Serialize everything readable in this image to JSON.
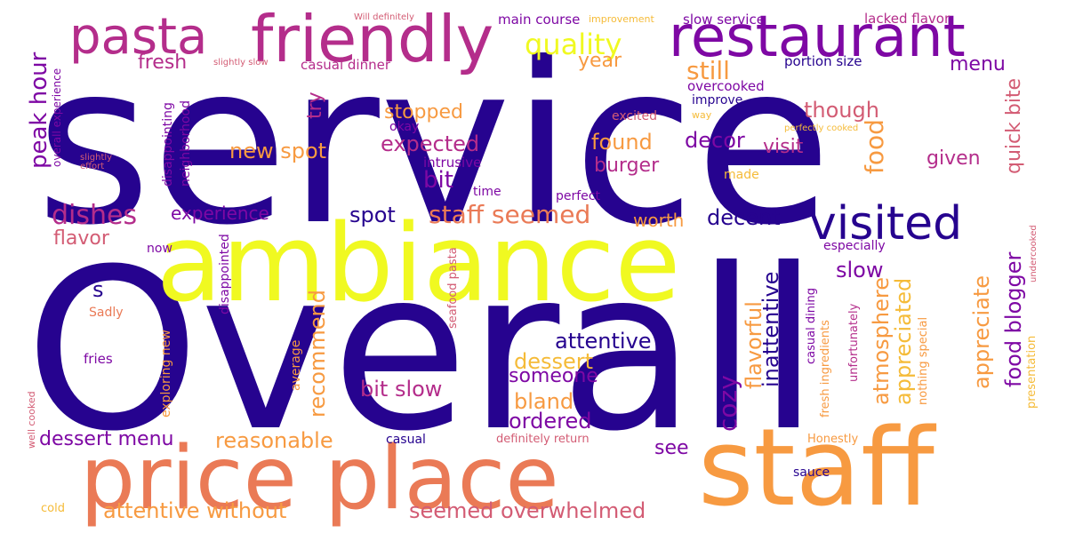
{
  "palette": {
    "indigo": "#26038f",
    "purple": "#7e08a4",
    "magenta": "#b42d8b",
    "pink": "#d35c74",
    "coral": "#ea7a56",
    "orange": "#f79a41",
    "gold": "#f5bb38",
    "yellow": "#f0f921"
  },
  "words": [
    {
      "text": "service",
      "color": "#26038f"
    },
    {
      "text": "Overall",
      "color": "#26038f"
    },
    {
      "text": "ambiance",
      "color": "#f0f921"
    },
    {
      "text": "staff",
      "color": "#f79a41"
    },
    {
      "text": "price place",
      "color": "#ea7a56"
    },
    {
      "text": "friendly",
      "color": "#b42d8b"
    },
    {
      "text": "restaurant",
      "color": "#7e08a4"
    },
    {
      "text": "pasta",
      "color": "#b42d8b"
    },
    {
      "text": "visited",
      "color": "#26038f"
    },
    {
      "text": "quality",
      "color": "#f0f921"
    },
    {
      "text": "staff seemed",
      "color": "#ea7a56"
    },
    {
      "text": "dishes",
      "color": "#b42d8b"
    },
    {
      "text": "peak hour",
      "color": "#7e08a4"
    },
    {
      "text": "food",
      "color": "#f79a41"
    },
    {
      "text": "seemed overwhelmed",
      "color": "#d35c74"
    },
    {
      "text": "attentive without",
      "color": "#f79a41"
    },
    {
      "text": "reasonable",
      "color": "#f79a41"
    },
    {
      "text": "dessert menu",
      "color": "#7e08a4"
    },
    {
      "text": "attentive",
      "color": "#26038f"
    },
    {
      "text": "experience",
      "color": "#7e08a4"
    },
    {
      "text": "new spot",
      "color": "#f79a41"
    },
    {
      "text": "expected",
      "color": "#b42d8b"
    },
    {
      "text": "decent",
      "color": "#26038f"
    },
    {
      "text": "still",
      "color": "#f79a41"
    },
    {
      "text": "though",
      "color": "#d35c74"
    },
    {
      "text": "stopped",
      "color": "#f79a41"
    },
    {
      "text": "found",
      "color": "#f79a41"
    },
    {
      "text": "burger",
      "color": "#b42d8b"
    },
    {
      "text": "decor",
      "color": "#7e08a4"
    },
    {
      "text": "visit",
      "color": "#b42d8b"
    },
    {
      "text": "bit",
      "color": "#7e08a4"
    },
    {
      "text": "spot",
      "color": "#26038f"
    },
    {
      "text": "worth",
      "color": "#f79a41"
    },
    {
      "text": "flavor",
      "color": "#d35c74"
    },
    {
      "text": "fresh",
      "color": "#b42d8b"
    },
    {
      "text": "menu",
      "color": "#7e08a4"
    },
    {
      "text": "year",
      "color": "#f79a41"
    },
    {
      "text": "try",
      "color": "#b42d8b"
    },
    {
      "text": "given",
      "color": "#b42d8b"
    },
    {
      "text": "quick bite",
      "color": "#d35c74"
    },
    {
      "text": "food blogger",
      "color": "#7e08a4"
    },
    {
      "text": "appreciate",
      "color": "#f79a41"
    },
    {
      "text": "atmosphere",
      "color": "#f79a41"
    },
    {
      "text": "appreciated",
      "color": "#f5bb38"
    },
    {
      "text": "cozy",
      "color": "#7e08a4"
    },
    {
      "text": "flavorful",
      "color": "#f79a41"
    },
    {
      "text": "inattentive",
      "color": "#26038f"
    },
    {
      "text": "slow",
      "color": "#7e08a4"
    },
    {
      "text": "bit slow",
      "color": "#b42d8b"
    },
    {
      "text": "someone",
      "color": "#7e08a4"
    },
    {
      "text": "dessert",
      "color": "#f5bb38"
    },
    {
      "text": "bland",
      "color": "#f79a41"
    },
    {
      "text": "ordered",
      "color": "#7e08a4"
    },
    {
      "text": "recommend",
      "color": "#f79a41"
    },
    {
      "text": "see",
      "color": "#7e08a4"
    },
    {
      "text": "s",
      "color": "#26038f"
    },
    {
      "text": "portion size",
      "color": "#26038f"
    },
    {
      "text": "main course",
      "color": "#7e08a4"
    },
    {
      "text": "slow service",
      "color": "#7e08a4"
    },
    {
      "text": "lacked flavor",
      "color": "#b42d8b"
    },
    {
      "text": "casual dinner",
      "color": "#b42d8b"
    },
    {
      "text": "overcooked",
      "color": "#7e08a4"
    },
    {
      "text": "improve",
      "color": "#26038f"
    },
    {
      "text": "excited",
      "color": "#d35c74"
    },
    {
      "text": "intrusive",
      "color": "#7e08a4"
    },
    {
      "text": "time",
      "color": "#7e08a4"
    },
    {
      "text": "perfect",
      "color": "#7e08a4"
    },
    {
      "text": "made",
      "color": "#f5bb38"
    },
    {
      "text": "okay",
      "color": "#7e08a4"
    },
    {
      "text": "casual",
      "color": "#26038f"
    },
    {
      "text": "definitely return",
      "color": "#d35c74"
    },
    {
      "text": "Honestly",
      "color": "#f79a41"
    },
    {
      "text": "sauce",
      "color": "#26038f"
    },
    {
      "text": "cold",
      "color": "#f5bb38"
    },
    {
      "text": "fries",
      "color": "#7e08a4"
    },
    {
      "text": "now",
      "color": "#7e08a4"
    },
    {
      "text": "Sadly",
      "color": "#ea7a56"
    },
    {
      "text": "especially",
      "color": "#7e08a4"
    },
    {
      "text": "way",
      "color": "#f5bb38"
    },
    {
      "text": "perfectly cooked",
      "color": "#f5bb38"
    },
    {
      "text": "Will definitely",
      "color": "#d35c74"
    },
    {
      "text": "improvement",
      "color": "#f5bb38"
    },
    {
      "text": "slightly slow",
      "color": "#d35c74"
    },
    {
      "text": "slightly effort",
      "color": "#d35c74"
    },
    {
      "text": "overall experience",
      "color": "#7e08a4"
    },
    {
      "text": "disappointing",
      "color": "#7e08a4"
    },
    {
      "text": "neighborhood",
      "color": "#7e08a4"
    },
    {
      "text": "disappointed",
      "color": "#7e08a4"
    },
    {
      "text": "seafood pasta",
      "color": "#d35c74"
    },
    {
      "text": "average",
      "color": "#f79a41"
    },
    {
      "text": "exploring new",
      "color": "#f79a41"
    },
    {
      "text": "well cooked",
      "color": "#d35c74"
    },
    {
      "text": "casual dining",
      "color": "#7e08a4"
    },
    {
      "text": "fresh ingredients",
      "color": "#f79a41"
    },
    {
      "text": "unfortunately",
      "color": "#b42d8b"
    },
    {
      "text": "nothing special",
      "color": "#f79a41"
    },
    {
      "text": "presentation",
      "color": "#f5bb38"
    },
    {
      "text": "undercooked",
      "color": "#d35c74"
    }
  ]
}
